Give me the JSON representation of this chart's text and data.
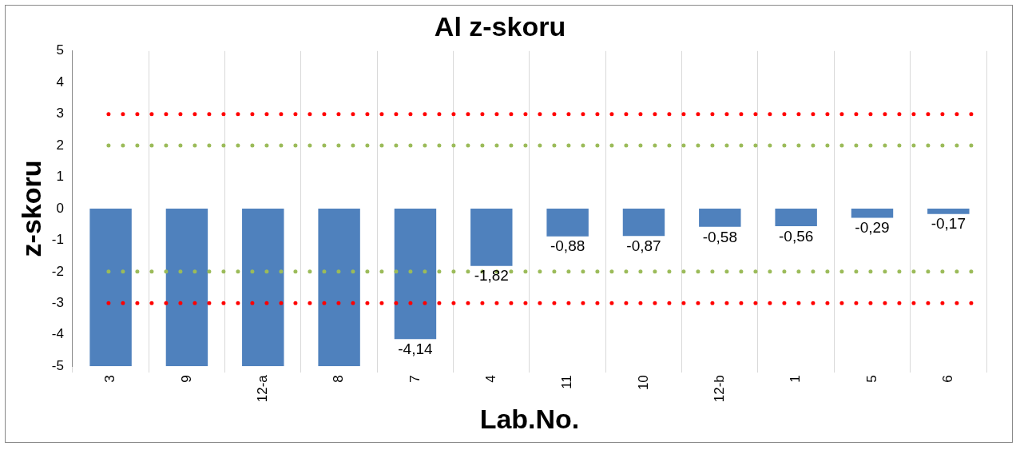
{
  "chart_data": {
    "type": "bar",
    "title": "Al z-skoru",
    "xlabel": "Lab.No.",
    "ylabel": "z-skoru",
    "categories": [
      "3",
      "9",
      "12-a",
      "8",
      "7",
      "4",
      "11",
      "10",
      "12-b",
      "1",
      "5",
      "6"
    ],
    "values": [
      -5,
      -5,
      -5,
      -5,
      -4.14,
      -1.82,
      -0.88,
      -0.87,
      -0.58,
      -0.56,
      -0.29,
      -0.17
    ],
    "value_labels": [
      null,
      null,
      null,
      null,
      "-4,14",
      "-1,82",
      "-0,88",
      "-0,87",
      "-0,58",
      "-0,56",
      "-0,29",
      "-0,17"
    ],
    "color": "#4f81bd",
    "ylim": [
      -5,
      5
    ],
    "yticks": [
      -5,
      -4,
      -3,
      -2,
      -1,
      0,
      1,
      2,
      3,
      4,
      5
    ],
    "grid": "x",
    "legend": false,
    "ref_lines": [
      {
        "axis": "y",
        "value": 3,
        "color": "#ff0000",
        "line_style": "dotted"
      },
      {
        "axis": "y",
        "value": -3,
        "color": "#ff0000",
        "line_style": "dotted"
      },
      {
        "axis": "y",
        "value": 2,
        "color": "#9bbb59",
        "line_style": "dotted"
      },
      {
        "axis": "y",
        "value": -2,
        "color": "#9bbb59",
        "line_style": "dotted"
      }
    ]
  }
}
